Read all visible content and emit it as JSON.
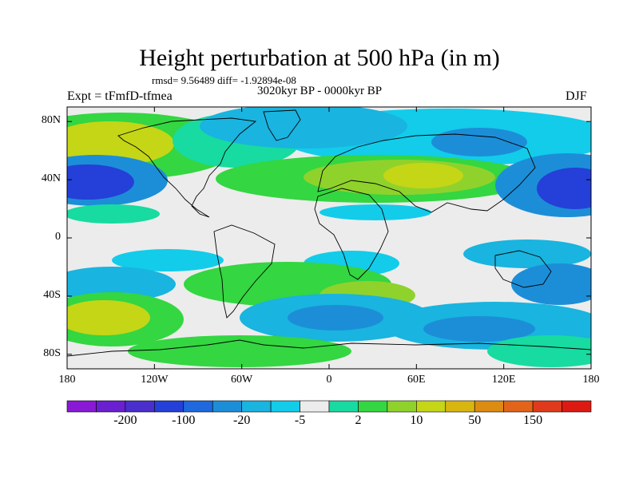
{
  "title": "Height perturbation at 500 hPa (in m)",
  "stats": "rmsd= 9.56489 diff= -1.92894e-08",
  "period": "3020kyr BP - 0000kyr BP",
  "experiment": "Expt = tFmfD-tfmea",
  "season": "DJF",
  "map": {
    "projection": "cylindrical equidistant",
    "lon_range": [
      -180,
      180
    ],
    "lat_range": [
      -90,
      90
    ],
    "y_ticks": [
      "80N",
      "40N",
      "0",
      "40S",
      "80S"
    ],
    "x_ticks": [
      "180",
      "120W",
      "60W",
      "0",
      "60E",
      "120E",
      "180"
    ]
  },
  "colorbar": {
    "labels": [
      "-200",
      "-100",
      "-20",
      "-5",
      "2",
      "10",
      "50",
      "150"
    ],
    "colors": [
      "#8a19d6",
      "#6a1fd0",
      "#4a2fcc",
      "#2440d8",
      "#1f68de",
      "#1c8ed8",
      "#19b4df",
      "#12ccea",
      "#ececec",
      "#17dba1",
      "#34d641",
      "#8fd22c",
      "#c4d616",
      "#d8b60f",
      "#dc8c12",
      "#e2641a",
      "#e03a1c",
      "#dd1a12"
    ]
  },
  "fields": {
    "neutral": "#ececec",
    "pos1": "#17dba1",
    "pos2": "#34d641",
    "pos3": "#8fd22c",
    "pos4": "#c4d616",
    "pos5": "#d8b60f",
    "neg1": "#12ccea",
    "neg2": "#19b4df",
    "neg3": "#1c8ed8",
    "neg4": "#1f68de",
    "neg5": "#2440d8"
  }
}
